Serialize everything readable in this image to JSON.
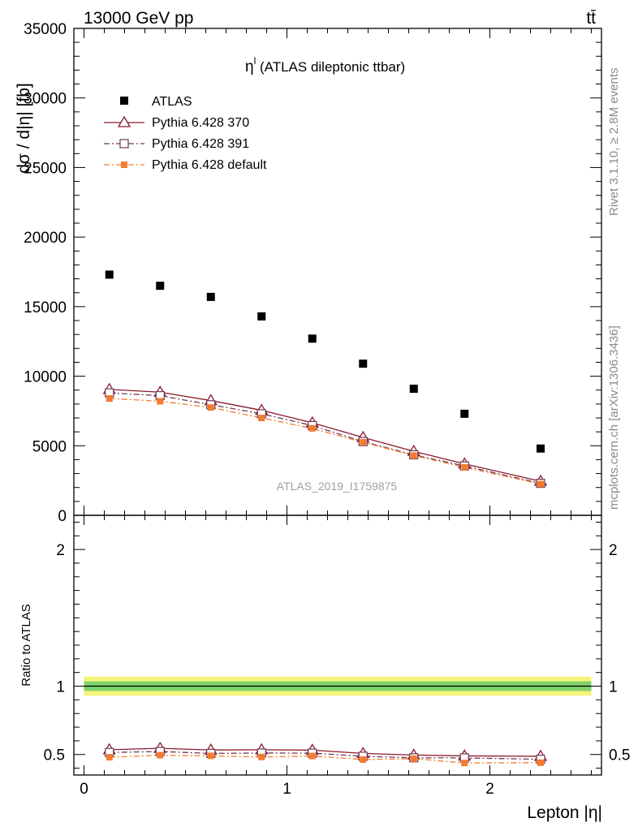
{
  "header": {
    "left": "13000 GeV pp",
    "right": "tt̄"
  },
  "side_labels": {
    "top": "Rivet 3.1.10, ≥ 2.8M events",
    "bottom": "mcplots.cern.ch [arXiv:1306.3436]"
  },
  "chart_data": {
    "type": "scatter",
    "title": "η^l (ATLAS dileptonic ttbar)",
    "title_main": "η",
    "title_sup": "l",
    "title_rest": " (ATLAS dileptonic ttbar)",
    "watermark": "ATLAS_2019_I1759875",
    "xlabel": "Lepton |η|",
    "ylabel": "dσ / d|η| [fb]",
    "ratio_ylabel": "Ratio to ATLAS",
    "xlim": [
      -0.05,
      2.55
    ],
    "ylim": [
      0,
      35000
    ],
    "ratio_ylim": [
      0.35,
      2.25
    ],
    "x_ticks": [
      0,
      1,
      2
    ],
    "x_tick_labels": [
      "0",
      "1",
      "2"
    ],
    "y_ticks": [
      0,
      5000,
      10000,
      15000,
      20000,
      25000,
      30000,
      35000
    ],
    "y_tick_labels": [
      "0",
      "5000",
      "10000",
      "15000",
      "20000",
      "25000",
      "30000",
      "35000"
    ],
    "ratio_ticks": [
      0.5,
      1,
      2
    ],
    "ratio_tick_labels": [
      "0.5",
      "1",
      "2"
    ],
    "x": [
      0.125,
      0.375,
      0.625,
      0.875,
      1.125,
      1.375,
      1.625,
      1.875,
      2.25
    ],
    "bin_edges": [
      0,
      0.25,
      0.5,
      0.75,
      1.0,
      1.25,
      1.5,
      1.75,
      2.0,
      2.5
    ],
    "series": [
      {
        "name": "ATLAS",
        "values": [
          17300,
          16500,
          15700,
          14300,
          12700,
          10900,
          9100,
          7300,
          4800
        ],
        "color": "#000000",
        "marker": "square-filled"
      },
      {
        "name": "Pythia 6.428 370",
        "values": [
          9050,
          8850,
          8250,
          7550,
          6650,
          5600,
          4600,
          3700,
          2450
        ],
        "color": "#8b1a2b",
        "marker": "triangle-open",
        "dash": "solid"
      },
      {
        "name": "Pythia 6.428 391",
        "values": [
          8800,
          8600,
          7950,
          7300,
          6450,
          5300,
          4350,
          3550,
          2300
        ],
        "color": "#6e3a55",
        "marker": "square-open",
        "dash": "dashdot"
      },
      {
        "name": "Pythia 6.428 default",
        "values": [
          8400,
          8200,
          7750,
          7000,
          6250,
          5250,
          4300,
          3450,
          2250
        ],
        "color": "#f47c30",
        "marker": "square-filled",
        "dash": "dashdot"
      }
    ],
    "ratios": [
      {
        "name": "Pythia 6.428 370",
        "values": [
          0.535,
          0.545,
          0.533,
          0.535,
          0.532,
          0.508,
          0.496,
          0.49,
          0.487
        ]
      },
      {
        "name": "Pythia 6.428 391",
        "values": [
          0.515,
          0.522,
          0.508,
          0.511,
          0.51,
          0.487,
          0.476,
          0.475,
          0.465
        ]
      },
      {
        "name": "Pythia 6.428 default",
        "values": [
          0.48,
          0.495,
          0.49,
          0.482,
          0.489,
          0.463,
          0.47,
          0.438,
          0.44
        ]
      }
    ],
    "ratio_band": {
      "inner": 0.035,
      "outer": 0.07,
      "inner_color": "#7fd36a",
      "outer_color": "#f4f47a"
    },
    "legend_placement": "top-left",
    "grid": false
  }
}
